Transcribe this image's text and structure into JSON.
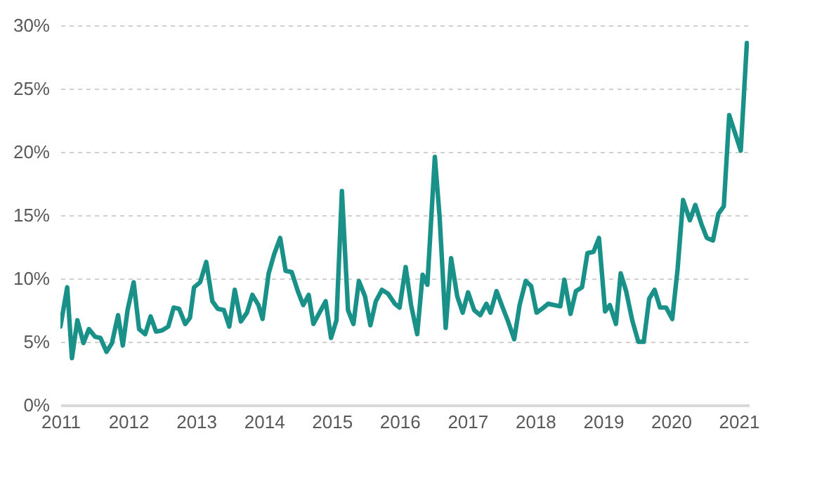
{
  "chart_data": {
    "type": "line",
    "grid": "y",
    "line_style": "solid",
    "xlim": [
      2011,
      2021.15
    ],
    "xticks": [
      2011,
      2012,
      2013,
      2014,
      2015,
      2016,
      2017,
      2018,
      2019,
      2020,
      2021
    ],
    "ylim": [
      0,
      30
    ],
    "yticks": [
      {
        "value": 0,
        "label": "0%"
      },
      {
        "value": 5,
        "label": "5%"
      },
      {
        "value": 10,
        "label": "10%"
      },
      {
        "value": 15,
        "label": "15%"
      },
      {
        "value": 20,
        "label": "20%"
      },
      {
        "value": 25,
        "label": "25%"
      },
      {
        "value": 30,
        "label": "30%"
      }
    ],
    "series": [
      {
        "color": "#1a9188",
        "x": [
          2011.0,
          2011.1,
          2011.17,
          2011.25,
          2011.34,
          2011.42,
          2011.51,
          2011.59,
          2011.68,
          2011.76,
          2011.85,
          2011.92,
          2011.99,
          2012.08,
          2012.16,
          2012.25,
          2012.33,
          2012.41,
          2012.5,
          2012.59,
          2012.67,
          2012.75,
          2012.84,
          2012.91,
          2012.97,
          2013.06,
          2013.15,
          2013.24,
          2013.32,
          2013.41,
          2013.49,
          2013.57,
          2013.66,
          2013.75,
          2013.83,
          2013.92,
          2013.98,
          2014.07,
          2014.15,
          2014.24,
          2014.32,
          2014.41,
          2014.5,
          2014.58,
          2014.66,
          2014.73,
          2014.82,
          2014.91,
          2014.99,
          2015.07,
          2015.15,
          2015.24,
          2015.32,
          2015.4,
          2015.49,
          2015.57,
          2015.65,
          2015.74,
          2015.83,
          2015.93,
          2016.0,
          2016.09,
          2016.17,
          2016.26,
          2016.34,
          2016.41,
          2016.52,
          2016.59,
          2016.68,
          2016.76,
          2016.85,
          2016.93,
          2017.01,
          2017.1,
          2017.19,
          2017.28,
          2017.34,
          2017.43,
          2017.52,
          2017.6,
          2017.69,
          2017.77,
          2017.86,
          2017.94,
          2018.02,
          2018.1,
          2018.19,
          2018.28,
          2018.37,
          2018.43,
          2018.52,
          2018.6,
          2018.69,
          2018.77,
          2018.86,
          2018.94,
          2019.03,
          2019.1,
          2019.19,
          2019.26,
          2019.34,
          2019.43,
          2019.52,
          2019.6,
          2019.68,
          2019.76,
          2019.84,
          2019.93,
          2020.02,
          2020.1,
          2020.18,
          2020.28,
          2020.36,
          2020.45,
          2020.53,
          2020.62,
          2020.7,
          2020.78,
          2020.86,
          2021.03,
          2021.12
        ],
        "values": [
          6.2,
          9.3,
          3.7,
          6.7,
          4.9,
          6.0,
          5.4,
          5.3,
          4.2,
          4.9,
          7.1,
          4.7,
          7.5,
          9.7,
          6.0,
          5.6,
          7.0,
          5.8,
          5.9,
          6.2,
          7.7,
          7.6,
          6.4,
          6.9,
          9.3,
          9.7,
          11.3,
          8.2,
          7.6,
          7.5,
          6.2,
          9.1,
          6.6,
          7.3,
          8.7,
          7.9,
          6.8,
          10.4,
          11.9,
          13.2,
          10.6,
          10.5,
          9.0,
          7.9,
          8.7,
          6.4,
          7.3,
          8.2,
          5.3,
          6.7,
          16.9,
          7.5,
          6.4,
          9.8,
          8.6,
          6.3,
          8.2,
          9.1,
          8.8,
          8.0,
          7.7,
          10.9,
          7.9,
          5.6,
          10.3,
          9.5,
          19.6,
          14.9,
          6.1,
          11.6,
          8.6,
          7.3,
          8.9,
          7.5,
          7.1,
          8.0,
          7.3,
          9.0,
          7.7,
          6.6,
          5.2,
          7.9,
          9.8,
          9.4,
          7.3,
          7.6,
          8.0,
          7.9,
          7.8,
          9.9,
          7.2,
          9.0,
          9.3,
          12.0,
          12.1,
          13.2,
          7.4,
          7.9,
          6.4,
          10.4,
          9.0,
          6.7,
          5.0,
          5.0,
          8.4,
          9.1,
          7.7,
          7.7,
          6.8,
          10.8,
          16.2,
          14.6,
          15.8,
          14.3,
          13.2,
          13.0,
          15.1,
          15.7,
          22.9,
          20.1,
          28.6
        ]
      }
    ]
  }
}
